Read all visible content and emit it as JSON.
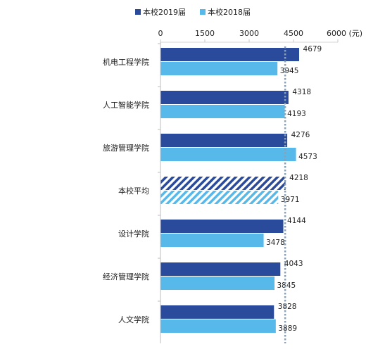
{
  "chart_data": {
    "type": "bar",
    "orientation": "horizontal",
    "title": "",
    "xlabel": "",
    "ylabel": "",
    "xlim": [
      0,
      6000
    ],
    "x_ticks": [
      0,
      1500,
      3000,
      4500,
      6000
    ],
    "x_tick_labels": [
      "0",
      "1500",
      "3000",
      "4500",
      "6000 (元)"
    ],
    "categories": [
      "机电工程学院",
      "人工智能学院",
      "旅游管理学院",
      "本校平均",
      "设计学院",
      "经济管理学院",
      "人文学院"
    ],
    "highlighted_category": "本校平均",
    "series": [
      {
        "name": "本校2019届",
        "values": [
          4679,
          4318,
          4276,
          4218,
          4144,
          4043,
          3828
        ],
        "color": "#2a4b9b"
      },
      {
        "name": "本校2018届",
        "values": [
          3945,
          4193,
          4573,
          3971,
          3478,
          3845,
          3889
        ],
        "color": "#57b8ea"
      }
    ],
    "reference_line": {
      "value": 4218,
      "style": "dotted",
      "color": "#8aa0b6"
    },
    "legend_position": "top",
    "grid": false
  }
}
